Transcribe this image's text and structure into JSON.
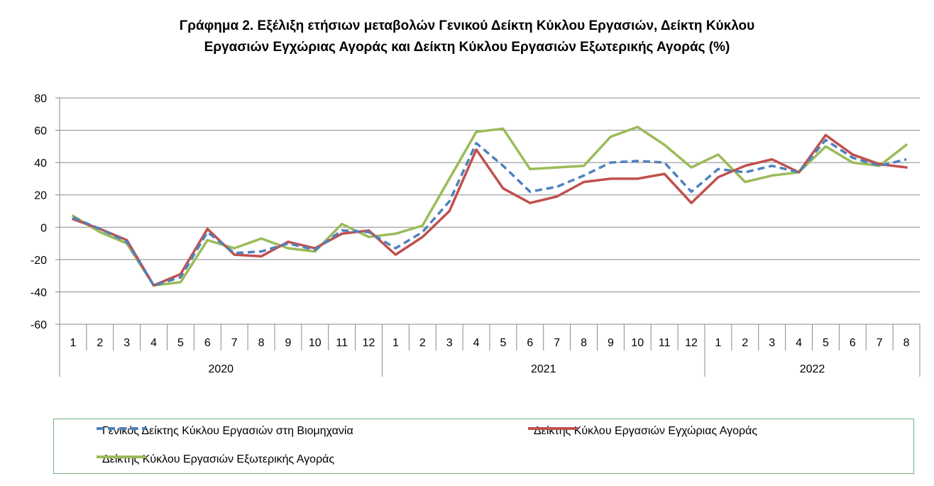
{
  "chart_data": {
    "type": "line",
    "title_lines": [
      "Γράφημα 2. Εξέλιξη ετήσιων μεταβολών Γενικού Δείκτη Κύκλου Εργασιών,  Δείκτη Κύκλου",
      "Εργασιών Εγχώριας Αγοράς και Δείκτη Κύκλου Εργασιών Εξωτερικής Αγοράς  (%)"
    ],
    "ylim": [
      -60,
      80
    ],
    "yticks": [
      "80",
      "60",
      "40",
      "20",
      "0",
      "-20",
      "-40",
      "-60"
    ],
    "ytick_values": [
      80,
      60,
      40,
      20,
      0,
      -20,
      -40,
      -60
    ],
    "grid": true,
    "legend_position": "bottom",
    "categories": [
      "1",
      "2",
      "3",
      "4",
      "5",
      "6",
      "7",
      "8",
      "9",
      "10",
      "11",
      "12",
      "1",
      "2",
      "3",
      "4",
      "5",
      "6",
      "7",
      "8",
      "9",
      "10",
      "11",
      "12",
      "1",
      "2",
      "3",
      "4",
      "5",
      "6",
      "7",
      "8"
    ],
    "groups": [
      {
        "label": "2020",
        "count": 12
      },
      {
        "label": "2021",
        "count": 12
      },
      {
        "label": "2022",
        "count": 8
      }
    ],
    "series": [
      {
        "name": "Γενικός Δείκτης Κύκλου Εργασιών στη Βιομηχανία",
        "color": "#4f81bd",
        "dash": true,
        "values": [
          6,
          -1,
          -9,
          -36,
          -31,
          -3,
          -16,
          -15,
          -10,
          -14,
          -2,
          -3,
          -13,
          -3,
          16,
          52,
          38,
          22,
          25,
          32,
          40,
          41,
          40,
          22,
          36,
          34,
          38,
          34,
          54,
          43,
          38,
          42
        ]
      },
      {
        "name": "Δείκτης Κύκλου Εργασιών  Εγχώριας Αγοράς",
        "color": "#c0504d",
        "dash": false,
        "values": [
          5,
          -1,
          -8,
          -36,
          -29,
          -1,
          -17,
          -18,
          -9,
          -13,
          -4,
          -2,
          -17,
          -6,
          10,
          48,
          24,
          15,
          19,
          28,
          30,
          30,
          33,
          15,
          31,
          38,
          42,
          34,
          57,
          45,
          39,
          37
        ]
      },
      {
        "name": "Δείκτης Κύκλου Εργασιών  Εξωτερικής Αγοράς",
        "color": "#9bbb59",
        "dash": false,
        "values": [
          7,
          -3,
          -10,
          -36,
          -34,
          -8,
          -13,
          -7,
          -13,
          -15,
          2,
          -6,
          -4,
          1,
          30,
          59,
          61,
          36,
          37,
          38,
          56,
          62,
          51,
          37,
          45,
          28,
          32,
          34,
          50,
          40,
          38,
          51
        ]
      }
    ]
  }
}
